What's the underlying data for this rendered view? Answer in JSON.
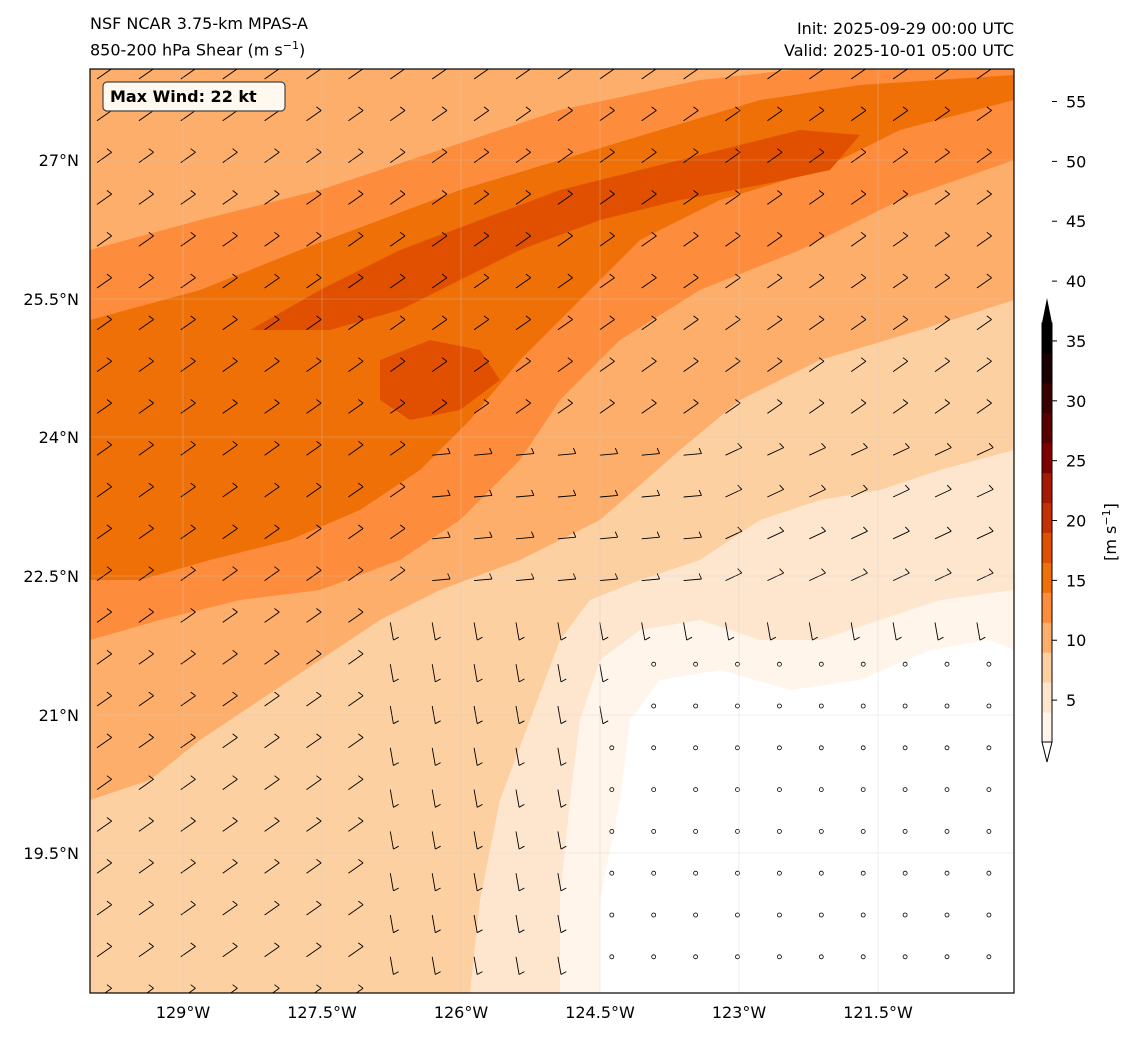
{
  "title": {
    "model": "NSF NCAR 3.75-km MPAS-A",
    "field": "850-200 hPa Shear (m s",
    "field_exp": "−1",
    "field_close": ")",
    "init": "Init: 2025-09-29 00:00 UTC",
    "valid": "Valid: 2025-10-01 05:00 UTC"
  },
  "annotation": {
    "max_wind": "Max Wind: 22 kt"
  },
  "map": {
    "lon_ticks": [
      "129°W",
      "127.5°W",
      "126°W",
      "124.5°W",
      "123°W",
      "121.5°W"
    ],
    "lat_ticks": [
      "27°N",
      "25.5°N",
      "24°N",
      "22.5°N",
      "21°N",
      "19.5°N"
    ]
  },
  "colorbar": {
    "label": "[m s",
    "label_exp": "−1",
    "label_close": "]",
    "ticks": [
      "5",
      "10",
      "15",
      "20",
      "25",
      "30",
      "35",
      "40",
      "45",
      "50",
      "55"
    ],
    "colors": [
      "#fff5eb",
      "#fee6ce",
      "#fdd0a2",
      "#fdae6b",
      "#fd8d3c",
      "#f07008",
      "#e05000",
      "#c53000",
      "#a51a00",
      "#7f0000",
      "#5a0000",
      "#3a0000",
      "#1a0000",
      "#000000"
    ]
  },
  "chart_data": {
    "type": "heatmap",
    "title": "850-200 hPa Shear (m s⁻¹)",
    "units": "m s⁻¹",
    "lon_range": [
      -129.9,
      -119.85
    ],
    "lat_range": [
      17.7,
      27.9
    ],
    "levels": [
      2.5,
      5,
      7.5,
      10,
      12.5,
      15,
      17.5,
      20,
      22.5,
      25,
      27.5,
      30,
      32.5,
      35
    ],
    "max_wind_kt": 22,
    "regions": [
      {
        "name": "weak-shear-southeast",
        "approx_value": 2
      },
      {
        "name": "moderate-south-central",
        "approx_value": 7
      },
      {
        "name": "strong-jet-northwest",
        "approx_value": 17
      },
      {
        "name": "jet-core",
        "approx_value": 21
      }
    ]
  }
}
